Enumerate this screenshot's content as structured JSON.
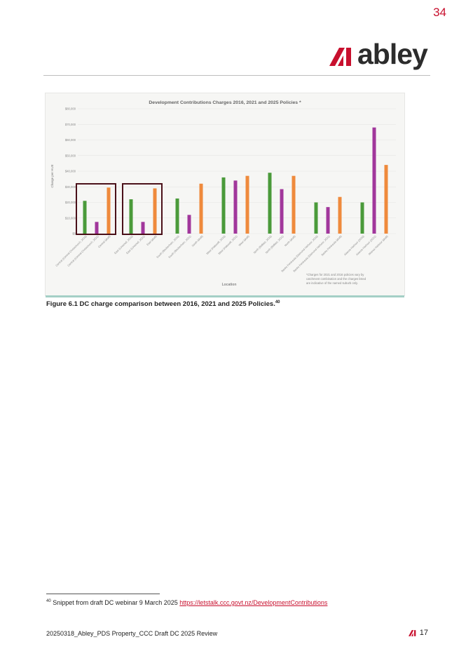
{
  "page": {
    "page_number": "34",
    "footer_doc": "20250318_Abley_PDS Property_CCC Draft DC 2025 Review",
    "footer_page": "17"
  },
  "logo": {
    "wordmark": "abley",
    "mark_icon": "abley-mark-icon"
  },
  "figure": {
    "caption": "Figure 6.1 DC charge comparison between 2016, 2021 and 2025 Policies.",
    "caption_ref": "40"
  },
  "footnote": {
    "ref": "40",
    "text": "Snippet from draft DC webinar 9 March 2025 ",
    "link": "https://letstalk.ccc.govt.nz/DevelopmentContributions"
  },
  "colors": {
    "s2016": "#4a9a3a",
    "s2021": "#a1379b",
    "s2025": "#ef8a3c",
    "highlight": "#4a1019",
    "brand": "#c8102e"
  },
  "chart_data": {
    "type": "bar",
    "title": "Development Contributions Charges 2016, 2021 and 2025 Policies *",
    "ylabel": "Charge per HUE",
    "xlabel": "Location",
    "ylim": [
      0,
      80000
    ],
    "yticks": [
      "$0",
      "$10,000",
      "$20,000",
      "$30,000",
      "$40,000",
      "$50,000",
      "$60,000",
      "$70,000",
      "$80,000"
    ],
    "note": "*Charges for 2021 and 2016 policies vary by catchment combination and the charges listed are indicative of the named suburb only.",
    "bars": [
      {
        "label": "Central (Central Christchurch, 2016)",
        "value": 21000,
        "series": "2016",
        "group": 0
      },
      {
        "label": "Central (Central Christchurch, 2021)",
        "value": 7500,
        "series": "2021",
        "group": 0
      },
      {
        "label": "Central (draft)",
        "value": 29500,
        "series": "2025",
        "group": 0
      },
      {
        "label": "East (Linwood, 2016)",
        "value": 22000,
        "series": "2016",
        "group": 1
      },
      {
        "label": "East (Linwood, 2021)",
        "value": 7500,
        "series": "2021",
        "group": 1
      },
      {
        "label": "East (draft)",
        "value": 29000,
        "series": "2025",
        "group": 1
      },
      {
        "label": "South (Beckenham, 2016)",
        "value": 22500,
        "series": "2016",
        "group": 2
      },
      {
        "label": "South (Beckenham, 2021)",
        "value": 12000,
        "series": "2021",
        "group": 2
      },
      {
        "label": "South (draft)",
        "value": 32000,
        "series": "2025",
        "group": 2
      },
      {
        "label": "West (Halswell, 2016)",
        "value": 36000,
        "series": "2016",
        "group": 3
      },
      {
        "label": "West (Halswell, 2021)",
        "value": 34000,
        "series": "2021",
        "group": 3
      },
      {
        "label": "West (draft)",
        "value": 37000,
        "series": "2025",
        "group": 3
      },
      {
        "label": "North (Belfast, 2016)",
        "value": 39000,
        "series": "2016",
        "group": 4
      },
      {
        "label": "North (Belfast, 2021)",
        "value": 28500,
        "series": "2021",
        "group": 4
      },
      {
        "label": "North (draft)",
        "value": 37000,
        "series": "2025",
        "group": 4
      },
      {
        "label": "Banks Peninsula (Diamond Harbour, 2016)",
        "value": 20000,
        "series": "2016",
        "group": 5
      },
      {
        "label": "Banks Peninsula (Diamond Harbour, 2021)",
        "value": 17000,
        "series": "2021",
        "group": 5
      },
      {
        "label": "Banks Peninsula (draft)",
        "value": 23500,
        "series": "2025",
        "group": 5
      },
      {
        "label": "Akaroa Harbour (2016)",
        "value": 20000,
        "series": "2016",
        "group": 6
      },
      {
        "label": "Akaroa Harbour (2021)",
        "value": 68000,
        "series": "2021",
        "group": 6
      },
      {
        "label": "Akaroa Harbour (draft)",
        "value": 44000,
        "series": "2025",
        "group": 6
      }
    ],
    "highlighted_groups": [
      0,
      1
    ]
  }
}
